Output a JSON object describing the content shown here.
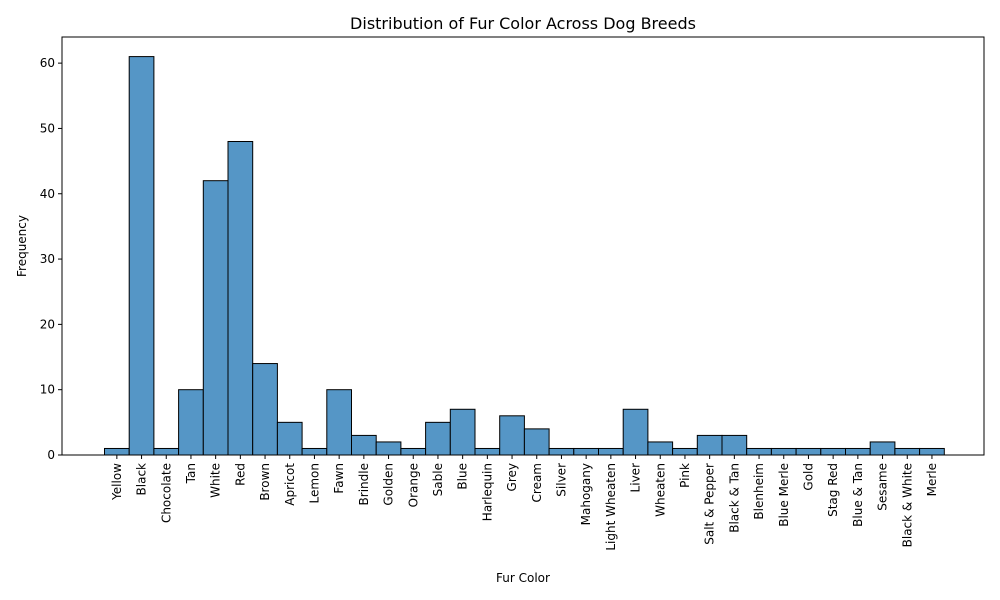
{
  "chart_data": {
    "type": "bar",
    "title": "Distribution of Fur Color Across Dog Breeds",
    "xlabel": "Fur Color",
    "ylabel": "Frequency",
    "ylim": [
      0,
      64
    ],
    "yticks": [
      0,
      10,
      20,
      30,
      40,
      50,
      60
    ],
    "grid": false,
    "bar_color": "#5596c6",
    "edge_color": "#000000",
    "categories": [
      "Yellow",
      "Black",
      "Chocolate",
      "Tan",
      "White",
      "Red",
      "Brown",
      "Apricot",
      "Lemon",
      "Fawn",
      "Brindle",
      "Golden",
      "Orange",
      "Sable",
      "Blue",
      "Harlequin",
      "Grey",
      "Cream",
      "Silver",
      "Mahogany",
      "Light Wheaten",
      "Liver",
      "Wheaten",
      "Pink",
      "Salt & Pepper",
      "Black & Tan",
      "Blenheim",
      "Blue Merle",
      "Gold",
      "Stag Red",
      "Blue & Tan",
      "Sesame",
      "Black & White",
      "Merle"
    ],
    "values": [
      1,
      61,
      1,
      10,
      42,
      48,
      14,
      5,
      1,
      10,
      3,
      2,
      1,
      5,
      7,
      1,
      6,
      4,
      1,
      1,
      1,
      7,
      2,
      1,
      3,
      3,
      1,
      1,
      1,
      1,
      1,
      2,
      1,
      1
    ]
  }
}
